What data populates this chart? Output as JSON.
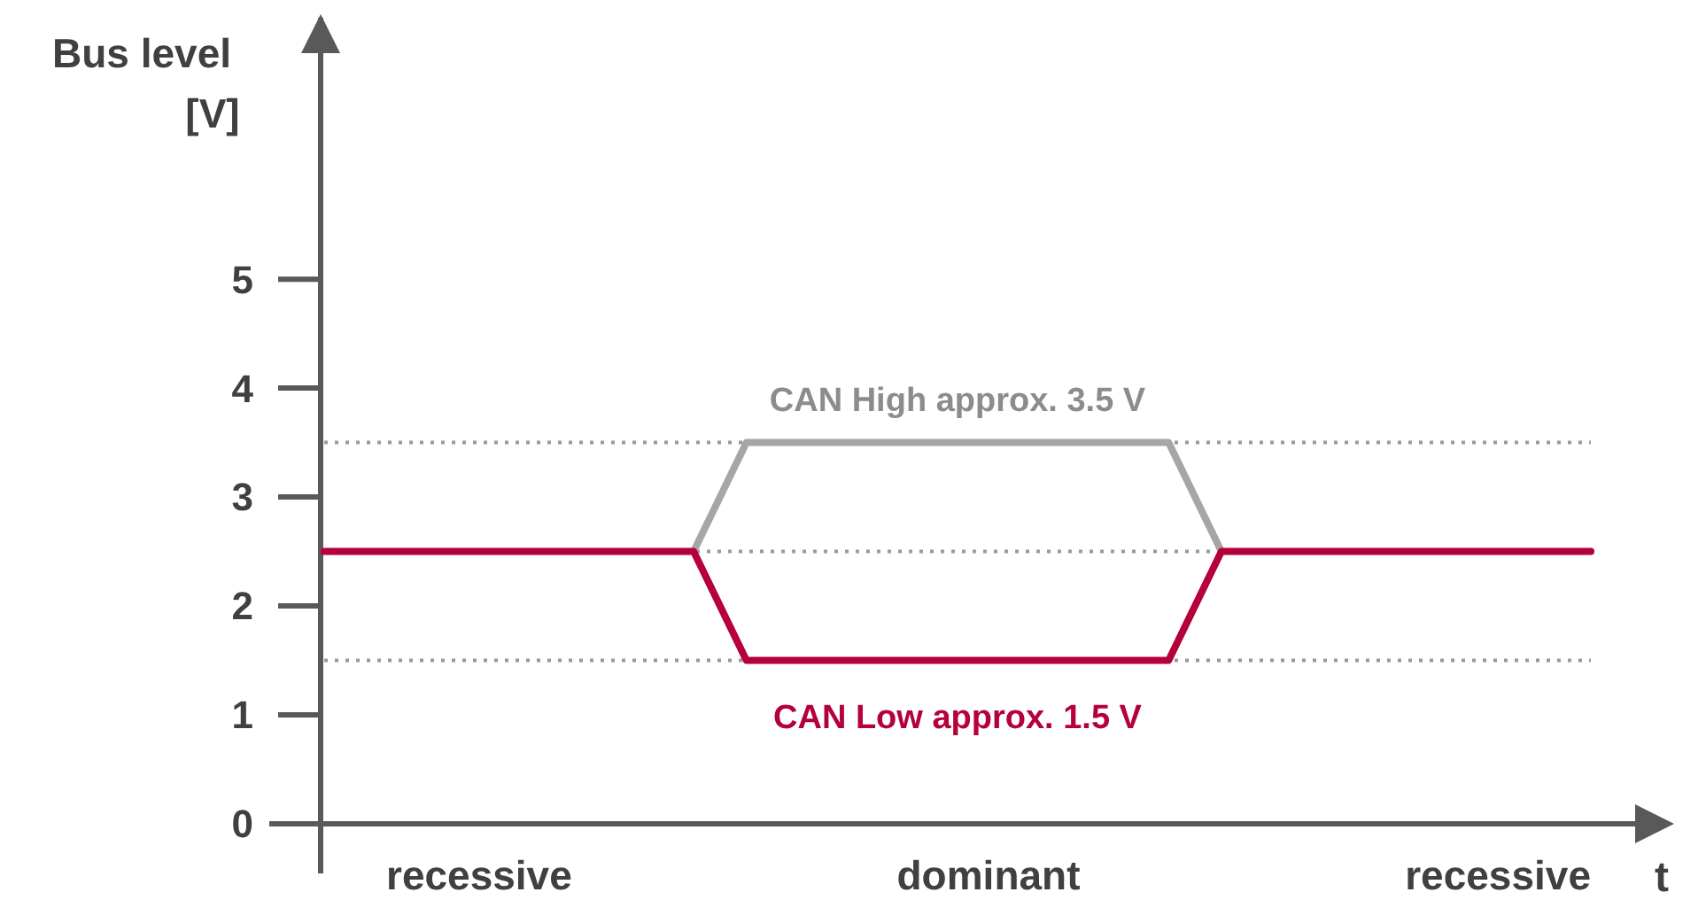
{
  "chart_data": {
    "type": "line",
    "ylabel": "Bus level [V]",
    "xlabel": "t",
    "categories": [
      null,
      null,
      null,
      null,
      null,
      null,
      null,
      null,
      null,
      null,
      null,
      null,
      null,
      null,
      null,
      null,
      null,
      null,
      null,
      null,
      null,
      null,
      null,
      null,
      null
    ],
    "ylim": [
      0,
      7.4
    ],
    "yticks": [
      0,
      1,
      2,
      3,
      4,
      5
    ],
    "series": [
      {
        "name": "CAN High approx. 3.5 V",
        "color": "#a6a6a6",
        "values": [
          null,
          null,
          null,
          null,
          null,
          null,
          null,
          2.5,
          3.5,
          3.5,
          3.5,
          3.5,
          3.5,
          3.5,
          3.5,
          3.5,
          3.5,
          2.5,
          null,
          null,
          null,
          null,
          null,
          null,
          null
        ]
      },
      {
        "name": "CAN Low approx. 1.5 V",
        "color": "#b5003a",
        "values": [
          2.5,
          2.5,
          2.5,
          2.5,
          2.5,
          2.5,
          2.5,
          2.5,
          1.5,
          1.5,
          1.5,
          1.5,
          1.5,
          1.5,
          1.5,
          1.5,
          1.5,
          2.5,
          2.5,
          2.5,
          2.5,
          2.5,
          2.5,
          2.5,
          2.5
        ]
      }
    ],
    "ref_lines": [
      {
        "axis": "y",
        "value": 3.5,
        "color": "#9a9a9a",
        "line_style": "dotted"
      },
      {
        "axis": "y",
        "value": 2.5,
        "color": "#9a9a9a",
        "line_style": "dotted"
      },
      {
        "axis": "y",
        "value": 1.5,
        "color": "#9a9a9a",
        "line_style": "dotted"
      }
    ],
    "annotations": [
      "recessive",
      "dominant",
      "recessive"
    ],
    "marker": "none",
    "line_style": "solid",
    "grid": false
  }
}
